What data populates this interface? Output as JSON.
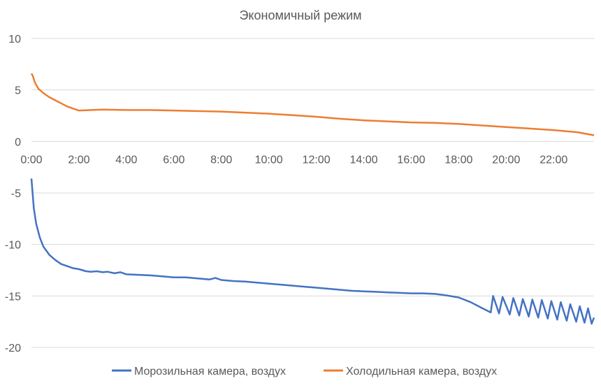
{
  "chart_data": {
    "type": "line",
    "title": "Экономичный режим",
    "xlabel": "",
    "ylabel": "",
    "xlim": [
      0,
      23.7
    ],
    "ylim": [
      -20,
      10
    ],
    "x_tick_values": [
      0,
      2,
      4,
      6,
      8,
      10,
      12,
      14,
      16,
      18,
      20,
      22
    ],
    "x_tick_labels": [
      "0:00",
      "2:00",
      "4:00",
      "6:00",
      "8:00",
      "10:00",
      "12:00",
      "14:00",
      "16:00",
      "18:00",
      "20:00",
      "22:00"
    ],
    "y_ticks": [
      10,
      5,
      0,
      -5,
      -10,
      -15,
      -20
    ],
    "y_tick_labels": [
      "10",
      "5",
      "0",
      "-5",
      "-10",
      "-15",
      "-20"
    ],
    "grid": true,
    "legend_position": "bottom",
    "series": [
      {
        "name": "Морозильная камера, воздух",
        "color": "#4472C4",
        "x": [
          0,
          0.1,
          0.2,
          0.35,
          0.5,
          0.75,
          1.0,
          1.25,
          1.5,
          1.75,
          2.0,
          2.3,
          2.5,
          2.75,
          3.0,
          3.2,
          3.5,
          3.75,
          4.0,
          4.5,
          5.0,
          5.5,
          6.0,
          6.5,
          7.0,
          7.5,
          7.75,
          8.0,
          8.5,
          9.0,
          9.5,
          10.0,
          10.5,
          11.0,
          11.5,
          12.0,
          12.5,
          13.0,
          13.5,
          14.0,
          14.5,
          15.0,
          15.5,
          16.0,
          16.5,
          17.0,
          17.5,
          18.0,
          18.5,
          19.0,
          19.35,
          19.45,
          19.7,
          19.85,
          20.15,
          20.3,
          20.55,
          20.7,
          20.95,
          21.1,
          21.35,
          21.5,
          21.75,
          21.9,
          22.15,
          22.3,
          22.55,
          22.7,
          22.95,
          23.1,
          23.3,
          23.45,
          23.6,
          23.7
        ],
        "values": [
          -3.6,
          -6.5,
          -8.0,
          -9.3,
          -10.2,
          -11.0,
          -11.5,
          -11.9,
          -12.1,
          -12.3,
          -12.4,
          -12.6,
          -12.65,
          -12.6,
          -12.7,
          -12.65,
          -12.8,
          -12.7,
          -12.9,
          -12.95,
          -13.0,
          -13.1,
          -13.2,
          -13.2,
          -13.3,
          -13.4,
          -13.25,
          -13.45,
          -13.55,
          -13.6,
          -13.7,
          -13.8,
          -13.9,
          -14.0,
          -14.1,
          -14.2,
          -14.3,
          -14.4,
          -14.5,
          -14.55,
          -14.6,
          -14.65,
          -14.7,
          -14.75,
          -14.75,
          -14.8,
          -14.95,
          -15.15,
          -15.6,
          -16.2,
          -16.6,
          -15.0,
          -16.7,
          -15.1,
          -16.8,
          -15.2,
          -16.9,
          -15.3,
          -17.0,
          -15.35,
          -17.1,
          -15.4,
          -17.2,
          -15.5,
          -17.3,
          -15.6,
          -17.4,
          -15.8,
          -17.5,
          -16.0,
          -17.6,
          -16.2,
          -17.7,
          -17.1
        ]
      },
      {
        "name": "Холодильная камера, воздух",
        "color": "#ED7D31",
        "x": [
          0,
          0.05,
          0.15,
          0.3,
          0.5,
          0.75,
          1.0,
          1.25,
          1.5,
          1.75,
          2.0,
          2.5,
          3.0,
          4.0,
          5.0,
          6.0,
          7.0,
          8.0,
          9.0,
          10.0,
          11.0,
          12.0,
          13.0,
          14.0,
          15.0,
          16.0,
          17.0,
          18.0,
          19.0,
          20.0,
          21.0,
          22.0,
          23.0,
          23.7
        ],
        "values": [
          6.6,
          6.4,
          5.7,
          5.1,
          4.7,
          4.3,
          4.0,
          3.7,
          3.4,
          3.2,
          3.0,
          3.05,
          3.1,
          3.05,
          3.05,
          3.0,
          2.95,
          2.9,
          2.8,
          2.7,
          2.55,
          2.4,
          2.2,
          2.05,
          1.95,
          1.85,
          1.8,
          1.7,
          1.55,
          1.4,
          1.25,
          1.1,
          0.9,
          0.6
        ]
      }
    ]
  }
}
